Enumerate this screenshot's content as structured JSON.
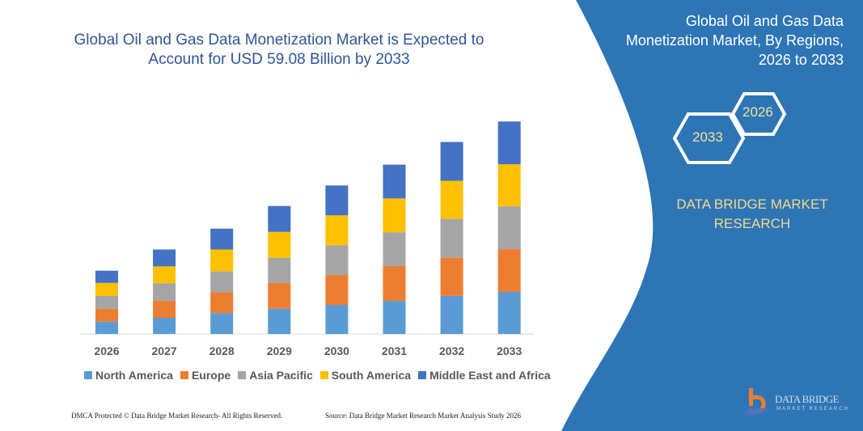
{
  "chart_data": {
    "type": "bar",
    "stacked": true,
    "title": "Global Oil and Gas Data Monetization Market is Expected to Account for USD 59.08 Billion by 2033",
    "categories": [
      "2026",
      "2027",
      "2028",
      "2029",
      "2030",
      "2031",
      "2032",
      "2033"
    ],
    "series": [
      {
        "name": "North America",
        "color": "#5b9bd5",
        "values": [
          3.4,
          4.5,
          5.8,
          7.0,
          8.1,
          9.2,
          10.6,
          11.7
        ]
      },
      {
        "name": "Europe",
        "color": "#ed7d31",
        "values": [
          3.6,
          4.7,
          5.8,
          7.2,
          8.3,
          9.7,
          10.6,
          11.9
        ]
      },
      {
        "name": "Asia Pacific",
        "color": "#a5a5a5",
        "values": [
          3.6,
          4.9,
          5.8,
          7.0,
          8.3,
          9.4,
          10.8,
          11.9
        ]
      },
      {
        "name": "South America",
        "color": "#ffc000",
        "values": [
          3.6,
          4.7,
          6.1,
          7.2,
          8.3,
          9.4,
          10.6,
          11.7
        ]
      },
      {
        "name": "Middle East and Africa",
        "color": "#4472c4",
        "values": [
          3.4,
          4.7,
          5.8,
          7.2,
          8.3,
          9.4,
          10.8,
          11.9
        ]
      }
    ],
    "ylim": [
      0,
      65
    ],
    "xlabel": "",
    "ylabel": "",
    "grid": false,
    "legend_position": "bottom"
  },
  "panel": {
    "title": "Global Oil and Gas Data Monetization Market, By Regions, 2026 to 2033",
    "hex_start": "2026",
    "hex_end": "2033",
    "brand": "DATA BRIDGE MARKET RESEARCH",
    "color": "#2e75b6"
  },
  "footer": {
    "copyright": "DMCA Protected © Data Bridge Market Research- All Rights Reserved.",
    "source": "Source: Data Bridge Market Research Market Analysis Study 2026"
  },
  "logo": {
    "text": "DATA BRIDGE",
    "subtext": "MARKET RESEARCH"
  }
}
